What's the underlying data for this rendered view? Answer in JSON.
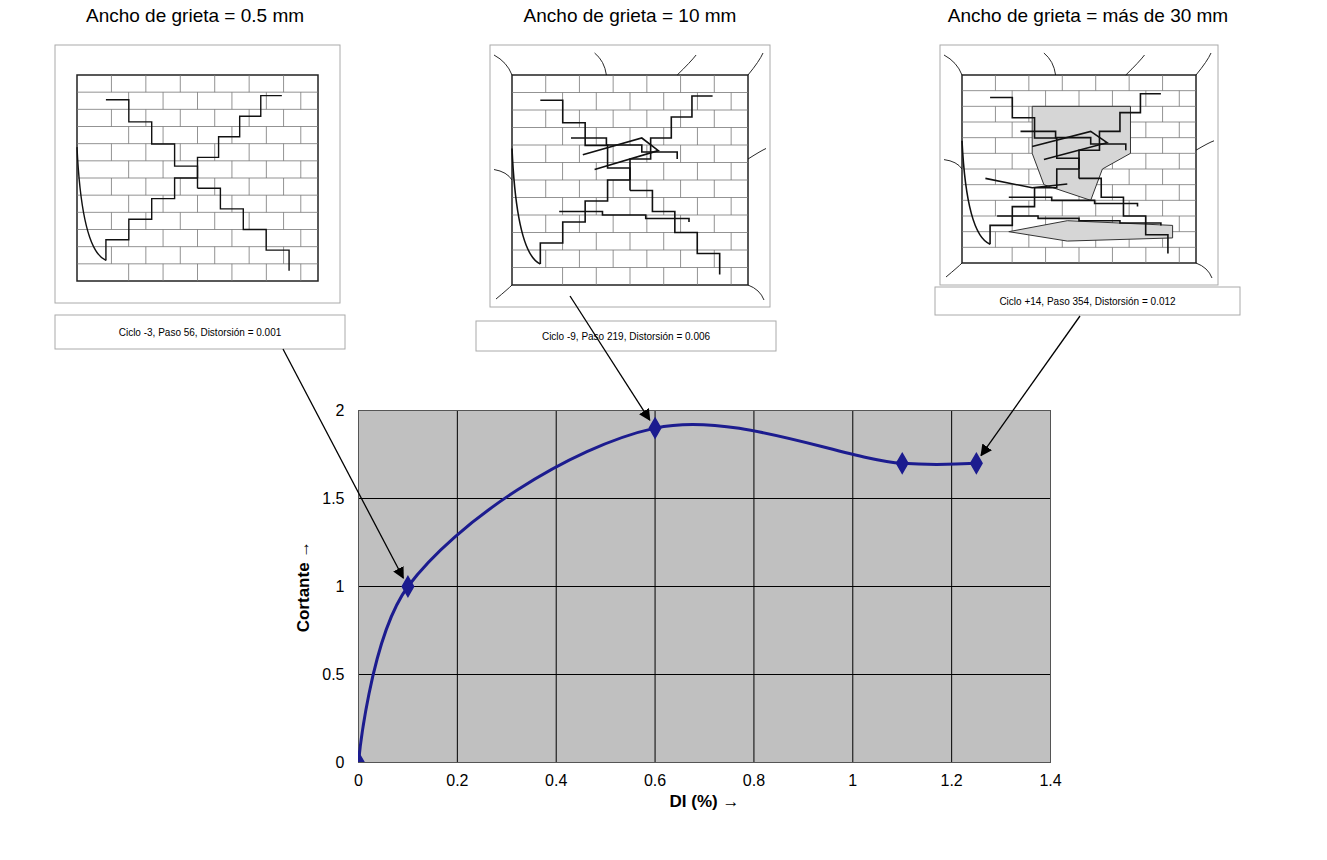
{
  "chart_data": {
    "type": "line",
    "x_label": "DI (%)",
    "y_label": "Cortante",
    "x": [
      0,
      0.1,
      0.6,
      1.1,
      1.25
    ],
    "values": [
      0,
      1,
      1.9,
      1.7,
      1.7
    ],
    "color": "#1c1c8f",
    "marker": "diamond",
    "xlim": [
      0,
      1.4
    ],
    "xticks": [
      0,
      0.2,
      0.4,
      0.6,
      0.8,
      1,
      1.2,
      1.4
    ],
    "ylim": [
      0,
      2
    ],
    "yticks": [
      0,
      0.5,
      1,
      1.5,
      2
    ],
    "grid": true,
    "annotations": [
      {
        "title": "Ancho de grieta =  0.5 mm",
        "caption": "Ciclo -3,  Paso 56, Distorsión = 0.001",
        "x": 0.1,
        "y": 1
      },
      {
        "title": "Ancho de grieta = 10 mm",
        "caption": "Ciclo -9,  Paso 219, Distorsión = 0.006",
        "x": 0.6,
        "y": 1.9
      },
      {
        "title": "Ancho de grieta = más de 30 mm",
        "caption": "Ciclo +14, Paso 354, Distorsión = 0.012",
        "x": 1.25,
        "y": 1.7
      }
    ]
  }
}
